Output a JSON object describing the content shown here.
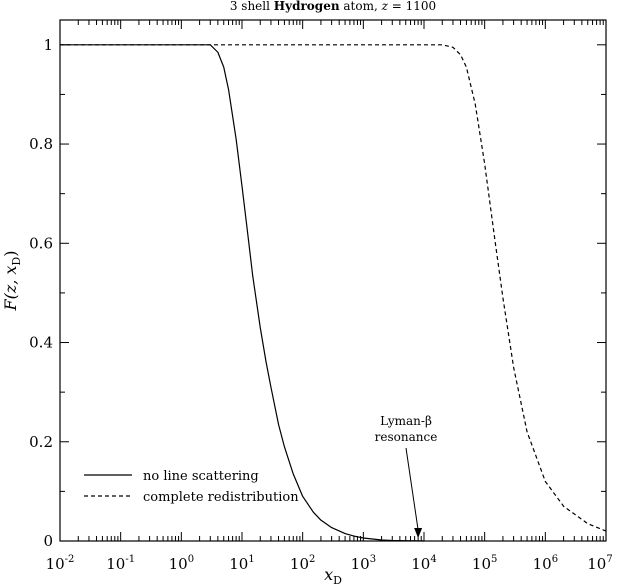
{
  "chart_data": {
    "type": "line",
    "title_parts": {
      "prefix": "3 shell ",
      "bold": "Hydrogen",
      "middle": " atom, ",
      "var": "z",
      "suffix": " = 1100"
    },
    "xlabel": {
      "main": "x",
      "sub": "D"
    },
    "ylabel": {
      "main": "F(z, x",
      "sub": "D",
      "close": ")"
    },
    "x_scale": "log",
    "xlim": [
      0.01,
      10000000
    ],
    "ylim": [
      0,
      1.05
    ],
    "x_ticks": [
      {
        "base": "10",
        "exp": "-2",
        "value": 0.01
      },
      {
        "base": "10",
        "exp": "-1",
        "value": 0.1
      },
      {
        "base": "10",
        "exp": "0",
        "value": 1
      },
      {
        "base": "10",
        "exp": "1",
        "value": 10
      },
      {
        "base": "10",
        "exp": "2",
        "value": 100
      },
      {
        "base": "10",
        "exp": "3",
        "value": 1000
      },
      {
        "base": "10",
        "exp": "4",
        "value": 10000
      },
      {
        "base": "10",
        "exp": "5",
        "value": 100000
      },
      {
        "base": "10",
        "exp": "6",
        "value": 1000000
      },
      {
        "base": "10",
        "exp": "7",
        "value": 10000000
      }
    ],
    "y_ticks": [
      {
        "label": "0",
        "value": 0
      },
      {
        "label": "0.2",
        "value": 0.2
      },
      {
        "label": "0.4",
        "value": 0.4
      },
      {
        "label": "0.6",
        "value": 0.6
      },
      {
        "label": "0.8",
        "value": 0.8
      },
      {
        "label": "1",
        "value": 1
      }
    ],
    "grid": false,
    "legend_position": "bottom-left",
    "series": [
      {
        "name": "no line scattering",
        "style": "solid",
        "color": "#000000",
        "x": [
          0.01,
          1,
          3,
          4,
          5,
          6,
          8,
          10,
          12,
          15,
          20,
          25,
          30,
          40,
          50,
          70,
          100,
          150,
          200,
          300,
          500,
          700,
          1000,
          2000,
          3000,
          5000,
          8000,
          10000
        ],
        "y": [
          1.0,
          1.0,
          1.0,
          0.985,
          0.955,
          0.91,
          0.81,
          0.715,
          0.635,
          0.535,
          0.43,
          0.36,
          0.31,
          0.235,
          0.19,
          0.135,
          0.09,
          0.058,
          0.042,
          0.027,
          0.015,
          0.01,
          0.006,
          0.002,
          0.001,
          0.0005,
          0.0002,
          0.0
        ]
      },
      {
        "name": "complete redistribution",
        "style": "dashed",
        "color": "#000000",
        "x": [
          0.01,
          1000,
          10000,
          20000,
          30000,
          40000,
          50000,
          70000,
          100000,
          150000,
          200000,
          300000,
          500000,
          1000000,
          2000000,
          5000000,
          10000000
        ],
        "y": [
          1.0,
          1.0,
          1.0,
          1.0,
          0.995,
          0.98,
          0.955,
          0.88,
          0.76,
          0.6,
          0.49,
          0.35,
          0.22,
          0.12,
          0.07,
          0.035,
          0.02
        ]
      }
    ],
    "annotations": [
      {
        "line1": "Lyman-β",
        "line2": "resonance",
        "arrow_to_x": 8000,
        "arrow_to_y": 0.0
      }
    ]
  }
}
